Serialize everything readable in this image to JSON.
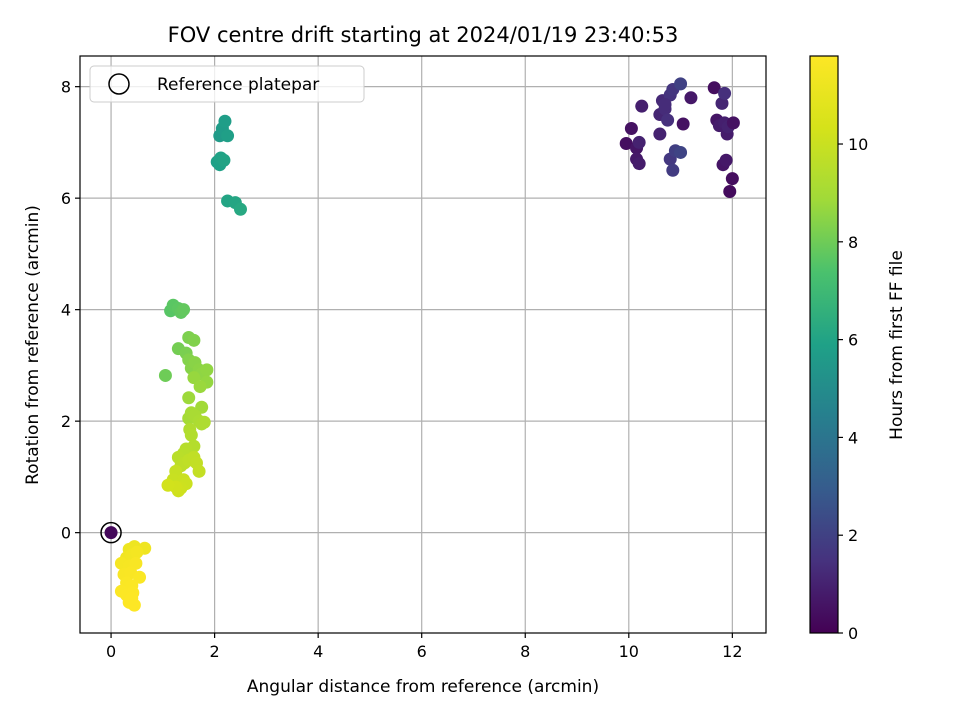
{
  "chart_data": {
    "type": "scatter",
    "title": "FOV centre drift starting at 2024/01/19 23:40:53",
    "xlabel": "Angular distance from reference (arcmin)",
    "ylabel": "Rotation from reference (arcmin)",
    "xlim": [
      -0.6,
      12.65
    ],
    "ylim": [
      -1.8,
      8.55
    ],
    "xticks": [
      0,
      2,
      4,
      6,
      8,
      10,
      12
    ],
    "yticks": [
      0,
      2,
      4,
      6,
      8
    ],
    "grid": true,
    "legend": {
      "position": "top-left",
      "entries": [
        "Reference platepar"
      ]
    },
    "reference_point": {
      "x": 0,
      "y": 0
    },
    "colorbar": {
      "label": "Hours from first FF file",
      "colormap": "viridis",
      "range": [
        0,
        11.8
      ],
      "ticks": [
        0,
        2,
        4,
        6,
        8,
        10
      ]
    },
    "points": [
      {
        "x": 0,
        "y": 0,
        "c": 0.2
      },
      {
        "x": 9.95,
        "y": 6.98,
        "c": 0.4
      },
      {
        "x": 10.05,
        "y": 7.25,
        "c": 0.5
      },
      {
        "x": 10.15,
        "y": 6.9,
        "c": 0.6
      },
      {
        "x": 10.15,
        "y": 6.7,
        "c": 0.7
      },
      {
        "x": 10.2,
        "y": 6.62,
        "c": 0.8
      },
      {
        "x": 10.25,
        "y": 7.65,
        "c": 0.9
      },
      {
        "x": 10.2,
        "y": 7.0,
        "c": 1.0
      },
      {
        "x": 10.6,
        "y": 7.5,
        "c": 1.1
      },
      {
        "x": 10.65,
        "y": 7.75,
        "c": 1.2
      },
      {
        "x": 10.7,
        "y": 7.6,
        "c": 1.3
      },
      {
        "x": 10.75,
        "y": 7.4,
        "c": 1.4
      },
      {
        "x": 10.8,
        "y": 7.85,
        "c": 1.5
      },
      {
        "x": 10.85,
        "y": 7.95,
        "c": 1.6
      },
      {
        "x": 10.8,
        "y": 6.7,
        "c": 1.7
      },
      {
        "x": 10.85,
        "y": 6.5,
        "c": 1.8
      },
      {
        "x": 10.9,
        "y": 6.85,
        "c": 1.9
      },
      {
        "x": 11.0,
        "y": 8.05,
        "c": 2.0
      },
      {
        "x": 11.0,
        "y": 6.82,
        "c": 2.1
      },
      {
        "x": 11.05,
        "y": 7.33,
        "c": 0.5
      },
      {
        "x": 11.2,
        "y": 7.8,
        "c": 0.7
      },
      {
        "x": 10.6,
        "y": 7.15,
        "c": 1.0
      },
      {
        "x": 10.7,
        "y": 7.68,
        "c": 1.3
      },
      {
        "x": 11.65,
        "y": 7.98,
        "c": 0.4
      },
      {
        "x": 11.7,
        "y": 7.4,
        "c": 0.6
      },
      {
        "x": 11.75,
        "y": 7.3,
        "c": 0.8
      },
      {
        "x": 11.8,
        "y": 7.7,
        "c": 1.1
      },
      {
        "x": 11.85,
        "y": 7.88,
        "c": 1.4
      },
      {
        "x": 11.85,
        "y": 7.35,
        "c": 0.9
      },
      {
        "x": 11.82,
        "y": 6.6,
        "c": 0.6
      },
      {
        "x": 11.88,
        "y": 6.68,
        "c": 0.7
      },
      {
        "x": 11.9,
        "y": 7.15,
        "c": 0.8
      },
      {
        "x": 11.92,
        "y": 7.28,
        "c": 1.0
      },
      {
        "x": 11.95,
        "y": 6.12,
        "c": 0.3
      },
      {
        "x": 12.0,
        "y": 6.35,
        "c": 0.4
      },
      {
        "x": 12.02,
        "y": 7.35,
        "c": 0.5
      },
      {
        "x": 2.1,
        "y": 7.12,
        "c": 5.6
      },
      {
        "x": 2.15,
        "y": 7.25,
        "c": 5.7
      },
      {
        "x": 2.2,
        "y": 7.38,
        "c": 5.75
      },
      {
        "x": 2.25,
        "y": 7.12,
        "c": 5.8
      },
      {
        "x": 2.05,
        "y": 6.65,
        "c": 5.85
      },
      {
        "x": 2.1,
        "y": 6.6,
        "c": 5.9
      },
      {
        "x": 2.12,
        "y": 6.72,
        "c": 5.95
      },
      {
        "x": 2.18,
        "y": 6.68,
        "c": 6.0
      },
      {
        "x": 2.25,
        "y": 5.95,
        "c": 6.05
      },
      {
        "x": 2.4,
        "y": 5.92,
        "c": 6.1
      },
      {
        "x": 2.5,
        "y": 5.8,
        "c": 6.2
      },
      {
        "x": 1.15,
        "y": 3.98,
        "c": 7.6
      },
      {
        "x": 1.2,
        "y": 4.08,
        "c": 7.65
      },
      {
        "x": 1.3,
        "y": 4.02,
        "c": 7.7
      },
      {
        "x": 1.35,
        "y": 3.95,
        "c": 7.75
      },
      {
        "x": 1.4,
        "y": 4.0,
        "c": 7.8
      },
      {
        "x": 1.05,
        "y": 2.82,
        "c": 8.0
      },
      {
        "x": 1.3,
        "y": 3.3,
        "c": 8.1
      },
      {
        "x": 1.45,
        "y": 3.22,
        "c": 8.2
      },
      {
        "x": 1.5,
        "y": 3.5,
        "c": 8.25
      },
      {
        "x": 1.6,
        "y": 3.45,
        "c": 8.3
      },
      {
        "x": 1.5,
        "y": 3.1,
        "c": 8.35
      },
      {
        "x": 1.55,
        "y": 2.95,
        "c": 8.4
      },
      {
        "x": 1.62,
        "y": 3.05,
        "c": 8.45
      },
      {
        "x": 1.7,
        "y": 2.92,
        "c": 8.5
      },
      {
        "x": 1.75,
        "y": 2.85,
        "c": 8.55
      },
      {
        "x": 1.85,
        "y": 2.92,
        "c": 8.6
      },
      {
        "x": 1.85,
        "y": 2.7,
        "c": 8.65
      },
      {
        "x": 1.6,
        "y": 2.78,
        "c": 8.7
      },
      {
        "x": 1.72,
        "y": 2.62,
        "c": 8.75
      },
      {
        "x": 1.5,
        "y": 2.42,
        "c": 8.8
      },
      {
        "x": 1.75,
        "y": 2.25,
        "c": 8.9
      },
      {
        "x": 1.5,
        "y": 2.05,
        "c": 9.0
      },
      {
        "x": 1.55,
        "y": 2.15,
        "c": 9.05
      },
      {
        "x": 1.62,
        "y": 2.1,
        "c": 9.1
      },
      {
        "x": 1.7,
        "y": 2.0,
        "c": 9.15
      },
      {
        "x": 1.75,
        "y": 1.95,
        "c": 9.2
      },
      {
        "x": 1.8,
        "y": 1.98,
        "c": 9.25
      },
      {
        "x": 1.52,
        "y": 1.85,
        "c": 9.3
      },
      {
        "x": 1.55,
        "y": 1.75,
        "c": 9.35
      },
      {
        "x": 1.6,
        "y": 1.55,
        "c": 9.4
      },
      {
        "x": 1.45,
        "y": 1.5,
        "c": 9.45
      },
      {
        "x": 1.4,
        "y": 1.42,
        "c": 9.5
      },
      {
        "x": 1.3,
        "y": 1.35,
        "c": 9.55
      },
      {
        "x": 1.35,
        "y": 1.2,
        "c": 9.6
      },
      {
        "x": 1.42,
        "y": 1.25,
        "c": 9.65
      },
      {
        "x": 1.5,
        "y": 1.3,
        "c": 9.7
      },
      {
        "x": 1.6,
        "y": 1.35,
        "c": 9.75
      },
      {
        "x": 1.65,
        "y": 1.25,
        "c": 9.8
      },
      {
        "x": 1.7,
        "y": 1.1,
        "c": 9.85
      },
      {
        "x": 1.25,
        "y": 1.1,
        "c": 9.9
      },
      {
        "x": 1.2,
        "y": 0.95,
        "c": 9.95
      },
      {
        "x": 1.4,
        "y": 0.95,
        "c": 10.0
      },
      {
        "x": 1.45,
        "y": 0.88,
        "c": 10.05
      },
      {
        "x": 1.35,
        "y": 0.8,
        "c": 10.1
      },
      {
        "x": 1.3,
        "y": 0.75,
        "c": 10.15
      },
      {
        "x": 1.25,
        "y": 0.82,
        "c": 10.2
      },
      {
        "x": 1.1,
        "y": 0.85,
        "c": 10.25
      },
      {
        "x": 0.35,
        "y": -0.3,
        "c": 11.2
      },
      {
        "x": 0.45,
        "y": -0.25,
        "c": 11.25
      },
      {
        "x": 0.65,
        "y": -0.28,
        "c": 11.3
      },
      {
        "x": 0.3,
        "y": -0.45,
        "c": 11.35
      },
      {
        "x": 0.4,
        "y": -0.4,
        "c": 11.4
      },
      {
        "x": 0.5,
        "y": -0.35,
        "c": 11.45
      },
      {
        "x": 0.2,
        "y": -0.55,
        "c": 11.5
      },
      {
        "x": 0.35,
        "y": -0.6,
        "c": 11.55
      },
      {
        "x": 0.48,
        "y": -0.55,
        "c": 11.6
      },
      {
        "x": 0.25,
        "y": -0.75,
        "c": 11.62
      },
      {
        "x": 0.38,
        "y": -0.72,
        "c": 11.65
      },
      {
        "x": 0.55,
        "y": -0.8,
        "c": 11.68
      },
      {
        "x": 0.3,
        "y": -0.9,
        "c": 11.7
      },
      {
        "x": 0.4,
        "y": -0.95,
        "c": 11.72
      },
      {
        "x": 0.2,
        "y": -1.05,
        "c": 11.74
      },
      {
        "x": 0.3,
        "y": -1.12,
        "c": 11.76
      },
      {
        "x": 0.42,
        "y": -1.08,
        "c": 11.78
      },
      {
        "x": 0.35,
        "y": -1.25,
        "c": 11.8
      },
      {
        "x": 0.45,
        "y": -1.3,
        "c": 11.8
      },
      {
        "x": 0.4,
        "y": -1.18,
        "c": 11.79
      }
    ]
  }
}
